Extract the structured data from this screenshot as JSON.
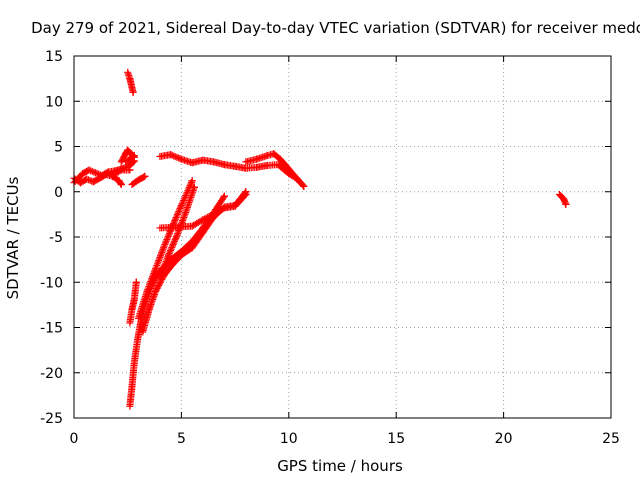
{
  "chart_data": {
    "type": "scatter",
    "title": "Day 279 of 2021, Sidereal Day-to-day VTEC variation (SDTVAR) for receiver medo",
    "xlabel": "GPS time / hours",
    "ylabel": "SDTVAR / TECUs",
    "xlim": [
      0,
      25
    ],
    "ylim": [
      -25,
      15
    ],
    "xticks": [
      0,
      5,
      10,
      15,
      20,
      25
    ],
    "yticks": [
      -25,
      -20,
      -15,
      -10,
      -5,
      0,
      5,
      10,
      15
    ],
    "grid": true,
    "marker": "plus",
    "series": [
      {
        "color": "#ff0000",
        "segments": [
          [
            [
              0.0,
              1.5
            ],
            [
              0.3,
              1.0
            ],
            [
              0.6,
              1.4
            ],
            [
              0.9,
              1.1
            ],
            [
              1.2,
              1.5
            ],
            [
              1.5,
              1.9
            ],
            [
              1.8,
              1.7
            ],
            [
              2.1,
              1.2
            ],
            [
              2.2,
              0.8
            ]
          ],
          [
            [
              0.0,
              1.0
            ],
            [
              0.4,
              2.0
            ],
            [
              0.7,
              2.4
            ],
            [
              1.0,
              2.1
            ],
            [
              1.3,
              1.8
            ],
            [
              1.6,
              2.2
            ],
            [
              1.9,
              2.3
            ],
            [
              2.3,
              2.6
            ],
            [
              2.6,
              2.9
            ],
            [
              2.8,
              3.4
            ]
          ],
          [
            [
              1.8,
              1.8
            ],
            [
              2.2,
              2.4
            ],
            [
              2.6,
              2.4
            ]
          ],
          [
            [
              2.4,
              3.3
            ],
            [
              2.6,
              3.6
            ],
            [
              2.8,
              4.0
            ]
          ],
          [
            [
              2.2,
              3.3
            ],
            [
              2.4,
              4.2
            ],
            [
              2.5,
              4.6
            ],
            [
              2.7,
              4.1
            ],
            [
              2.8,
              3.8
            ]
          ],
          [
            [
              2.5,
              13.2
            ],
            [
              2.6,
              12.5
            ],
            [
              2.7,
              11.5
            ],
            [
              2.75,
              11.0
            ]
          ],
          [
            [
              2.7,
              0.8
            ],
            [
              3.0,
              1.3
            ],
            [
              3.3,
              1.7
            ]
          ],
          [
            [
              4.0,
              3.9
            ],
            [
              4.5,
              4.1
            ],
            [
              5.0,
              3.6
            ],
            [
              5.5,
              3.2
            ],
            [
              6.0,
              3.5
            ],
            [
              6.5,
              3.3
            ],
            [
              7.0,
              3.0
            ],
            [
              7.5,
              2.8
            ],
            [
              8.0,
              2.6
            ],
            [
              8.5,
              2.7
            ],
            [
              9.0,
              2.9
            ],
            [
              9.5,
              3.0
            ],
            [
              10.0,
              2.0
            ],
            [
              10.4,
              1.4
            ],
            [
              10.7,
              0.6
            ]
          ],
          [
            [
              8.0,
              3.3
            ],
            [
              8.5,
              3.6
            ],
            [
              9.0,
              4.0
            ],
            [
              9.3,
              4.2
            ],
            [
              9.6,
              3.6
            ],
            [
              10.0,
              2.5
            ],
            [
              10.5,
              1.1
            ]
          ],
          [
            [
              2.6,
              -23.7
            ],
            [
              2.7,
              -21.5
            ],
            [
              2.8,
              -19.0
            ],
            [
              2.95,
              -16.5
            ],
            [
              3.1,
              -14.5
            ],
            [
              3.3,
              -12.5
            ],
            [
              3.6,
              -10.5
            ],
            [
              4.0,
              -8.8
            ],
            [
              4.5,
              -7.5
            ],
            [
              5.0,
              -6.6
            ],
            [
              5.5,
              -5.5
            ],
            [
              6.0,
              -4.0
            ],
            [
              6.5,
              -2.3
            ],
            [
              7.0,
              -0.5
            ]
          ],
          [
            [
              3.2,
              -15.5
            ],
            [
              3.5,
              -13.0
            ],
            [
              3.8,
              -11.0
            ],
            [
              4.2,
              -9.2
            ],
            [
              4.6,
              -8.0
            ],
            [
              5.0,
              -7.0
            ],
            [
              5.5,
              -6.2
            ],
            [
              6.0,
              -4.5
            ],
            [
              6.5,
              -2.8
            ],
            [
              7.0,
              -1.7
            ],
            [
              7.5,
              -1.5
            ],
            [
              8.0,
              0.0
            ]
          ],
          [
            [
              3.0,
              -14.0
            ],
            [
              3.4,
              -11.0
            ],
            [
              3.8,
              -8.5
            ],
            [
              4.2,
              -6.0
            ],
            [
              4.6,
              -3.7
            ],
            [
              5.0,
              -1.5
            ],
            [
              5.5,
              1.2
            ]
          ],
          [
            [
              4.0,
              -9.5
            ],
            [
              4.4,
              -7.0
            ],
            [
              4.8,
              -4.8
            ],
            [
              5.2,
              -2.3
            ],
            [
              5.6,
              0.5
            ]
          ],
          [
            [
              4.0,
              -4.0
            ],
            [
              4.8,
              -3.9
            ],
            [
              5.5,
              -3.8
            ],
            [
              6.0,
              -3.1
            ],
            [
              7.0,
              -1.8
            ],
            [
              7.5,
              -1.6
            ],
            [
              8.0,
              -0.3
            ]
          ],
          [
            [
              2.6,
              -14.5
            ],
            [
              2.7,
              -13.0
            ],
            [
              2.8,
              -12.0
            ],
            [
              2.9,
              -10.0
            ]
          ],
          [
            [
              22.6,
              -0.3
            ],
            [
              22.8,
              -0.8
            ],
            [
              22.9,
              -1.4
            ]
          ]
        ]
      }
    ]
  }
}
